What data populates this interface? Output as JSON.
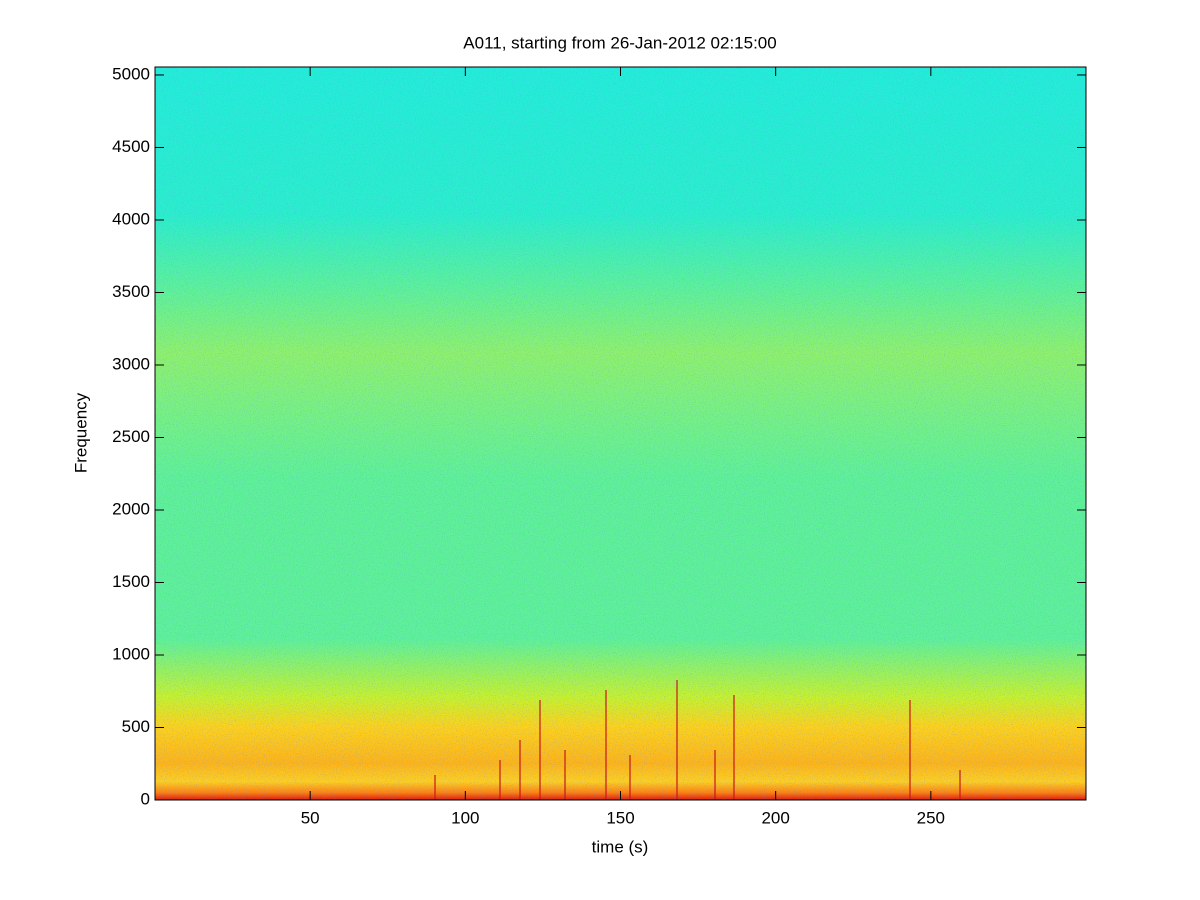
{
  "chart_data": {
    "type": "spectrogram",
    "title": "A011, starting from 26-Jan-2012 02:15:00",
    "x_label": "time (s)",
    "y_label": "Frequency",
    "xlim": [
      0,
      300
    ],
    "ylim": [
      0,
      5055
    ],
    "xticks": [
      50,
      100,
      150,
      200,
      250
    ],
    "yticks": [
      0,
      500,
      1000,
      1500,
      2000,
      2500,
      3000,
      3500,
      4000,
      4500,
      5000
    ],
    "colormap": "jet"
  }
}
